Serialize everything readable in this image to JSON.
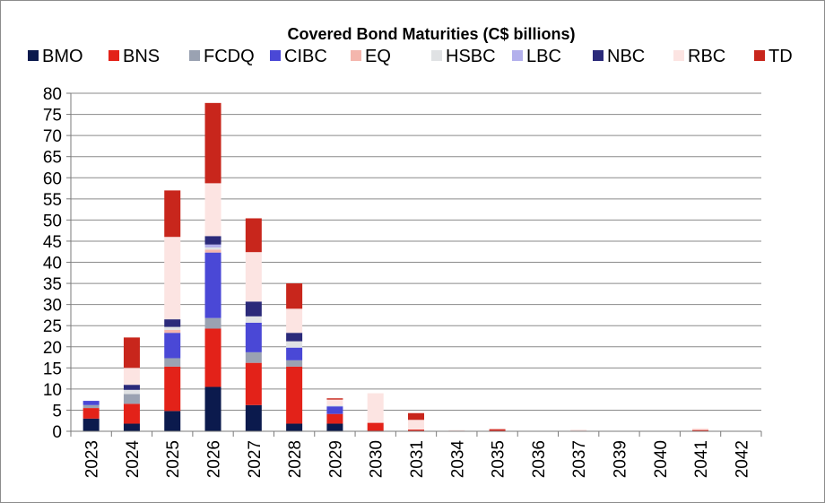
{
  "chart_data": {
    "type": "bar",
    "stacked": true,
    "title": "Covered Bond Maturities (C$ billions)",
    "xlabel": "",
    "ylabel": "",
    "ylim": [
      0,
      80
    ],
    "ytick_step": 5,
    "grid": true,
    "legend_position": "top",
    "categories": [
      "2023",
      "2024",
      "2025",
      "2026",
      "2027",
      "2028",
      "2029",
      "2030",
      "2031",
      "2034",
      "2035",
      "2036",
      "2037",
      "2039",
      "2040",
      "2041",
      "2042"
    ],
    "series": [
      {
        "name": "BMO",
        "color": "#0b1a4d",
        "values": [
          3.0,
          1.8,
          4.8,
          10.5,
          6.2,
          1.8,
          1.8,
          0,
          0,
          0,
          0,
          0,
          0,
          0,
          0,
          0,
          0
        ]
      },
      {
        "name": "BNS",
        "color": "#e32219",
        "values": [
          2.5,
          4.7,
          10.5,
          13.8,
          10.0,
          13.5,
          2.3,
          2.0,
          0.4,
          0,
          0.3,
          0,
          0,
          0,
          0,
          0.3,
          0
        ]
      },
      {
        "name": "FCDQ",
        "color": "#9aa2b2",
        "values": [
          0.7,
          2.3,
          2.0,
          2.5,
          2.5,
          1.5,
          0,
          0,
          0,
          0,
          0,
          0,
          0,
          0,
          0,
          0,
          0
        ]
      },
      {
        "name": "CIBC",
        "color": "#4a48d6",
        "values": [
          1.0,
          0,
          6.0,
          15.5,
          7.0,
          3.0,
          1.8,
          0,
          0,
          0,
          0,
          0,
          0,
          0,
          0,
          0,
          0
        ]
      },
      {
        "name": "EQ",
        "color": "#f4b6ad",
        "values": [
          0,
          0,
          0.7,
          0.7,
          0,
          0,
          0,
          0,
          0,
          0,
          0,
          0,
          0,
          0,
          0,
          0,
          0
        ]
      },
      {
        "name": "HSBC",
        "color": "#e0e2e4",
        "values": [
          0,
          1.0,
          0.7,
          0.5,
          1.5,
          1.5,
          0.3,
          0,
          0,
          0,
          0,
          0,
          0,
          0,
          0,
          0,
          0
        ]
      },
      {
        "name": "LBC",
        "color": "#b3b0ec",
        "values": [
          0,
          0,
          0,
          0.7,
          0,
          0,
          0,
          0,
          0,
          0,
          0,
          0,
          0,
          0,
          0,
          0,
          0
        ]
      },
      {
        "name": "NBC",
        "color": "#2b2a7a",
        "values": [
          0,
          1.2,
          1.8,
          2.0,
          3.5,
          2.0,
          0,
          0,
          0,
          0,
          0,
          0,
          0,
          0,
          0,
          0,
          0
        ]
      },
      {
        "name": "RBC",
        "color": "#fce4e2",
        "values": [
          0,
          4.0,
          19.5,
          12.5,
          11.7,
          5.7,
          1.3,
          7.0,
          2.3,
          0.3,
          0,
          0,
          0.4,
          0,
          0,
          0.4,
          0
        ]
      },
      {
        "name": "TD",
        "color": "#c8261c",
        "values": [
          0,
          7.2,
          11.0,
          19.0,
          8.0,
          6.0,
          0.3,
          0,
          1.6,
          0,
          0.2,
          0,
          0,
          0,
          0,
          0,
          0
        ]
      }
    ]
  }
}
